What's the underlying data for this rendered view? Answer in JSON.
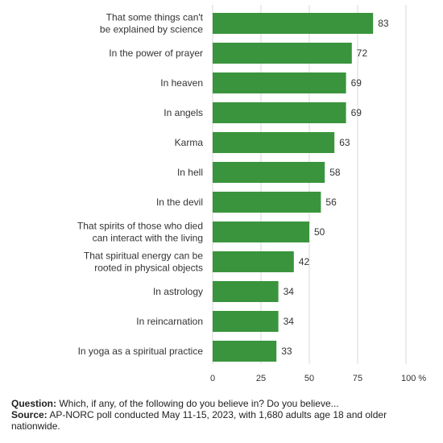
{
  "chart_data": {
    "type": "bar",
    "orientation": "horizontal",
    "categories": [
      [
        "That some things can't",
        "be explained by science"
      ],
      [
        "In the power of prayer"
      ],
      [
        "In heaven"
      ],
      [
        "In angels"
      ],
      [
        "Karma"
      ],
      [
        "In hell"
      ],
      [
        "In the devil"
      ],
      [
        "That spirits of those who died",
        "can interact with the living"
      ],
      [
        "That spiritual energy can be",
        "rooted in physical objects"
      ],
      [
        "In astrology"
      ],
      [
        "In reincarnation"
      ],
      [
        "In yoga as a spiritual practice"
      ]
    ],
    "values": [
      83,
      72,
      69,
      69,
      63,
      58,
      56,
      50,
      42,
      34,
      34,
      33
    ],
    "xlim": [
      0,
      100
    ],
    "xticks": [
      0,
      25,
      50,
      75,
      100
    ],
    "xtick_labels": [
      "0",
      "25",
      "50",
      "75",
      "100 %"
    ],
    "grid": true,
    "bar_color": "#3a943d"
  },
  "footer": {
    "question_label": "Question:",
    "question_text": "Which, if any, of the following do you believe in? Do you believe...",
    "source_label": "Source:",
    "source_text": "AP-NORC poll conducted May 11-15, 2023, with 1,680 adults age 18 and older nationwide."
  }
}
